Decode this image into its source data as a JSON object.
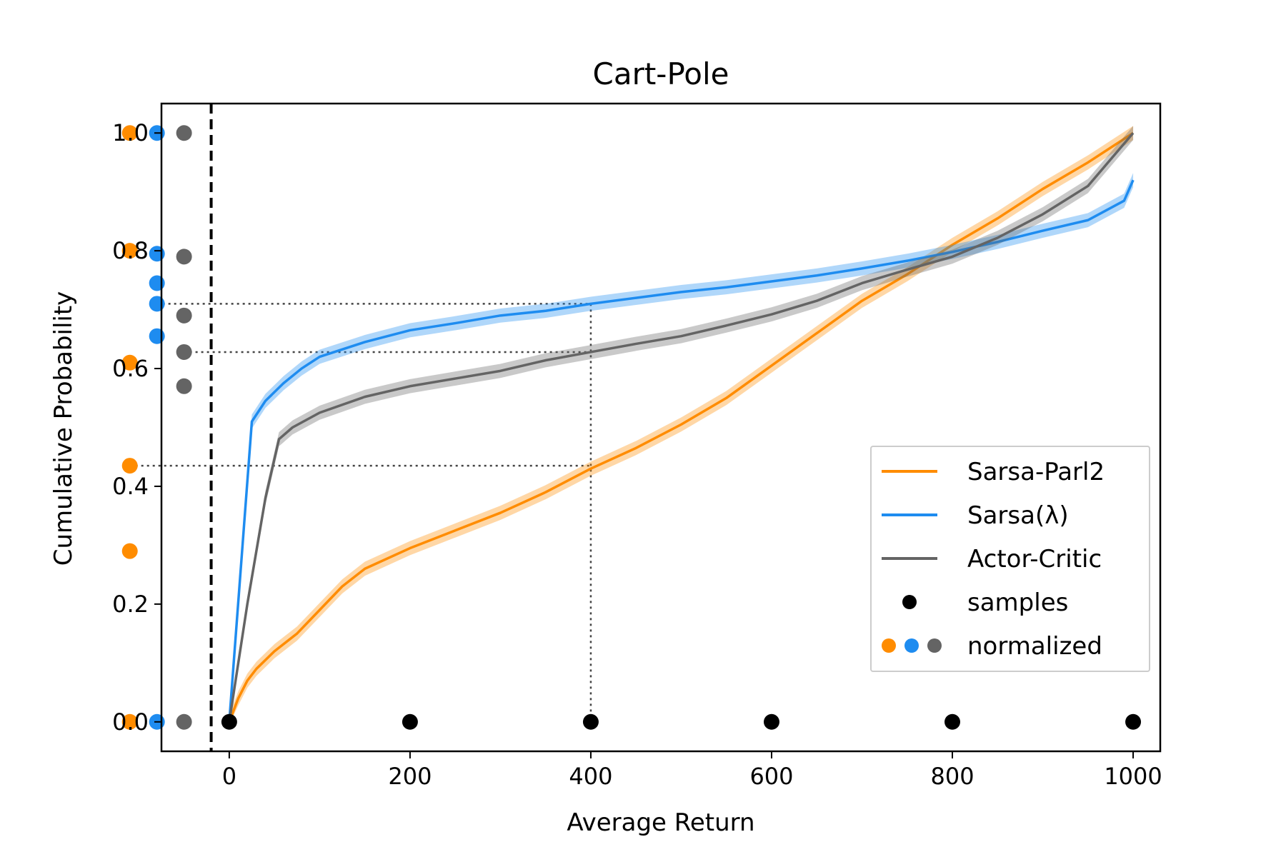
{
  "chart_data": {
    "type": "line",
    "title": "Cart-Pole",
    "xlabel": "Average Return",
    "ylabel": "Cumulative Probability",
    "xlim": [
      -75,
      1030
    ],
    "ylim": [
      -0.05,
      1.05
    ],
    "xticks": [
      0,
      200,
      400,
      600,
      800,
      1000
    ],
    "yticks": [
      0.0,
      0.2,
      0.4,
      0.6,
      0.8,
      1.0
    ],
    "grid": false,
    "legend_position": "lower-right",
    "series": [
      {
        "name": "Sarsa-Parl2",
        "color": "#ff8c00",
        "x": [
          0,
          10,
          20,
          30,
          50,
          75,
          100,
          125,
          150,
          200,
          250,
          300,
          350,
          400,
          450,
          500,
          550,
          600,
          650,
          700,
          750,
          800,
          850,
          900,
          950,
          1000
        ],
        "y": [
          0.0,
          0.04,
          0.07,
          0.09,
          0.12,
          0.15,
          0.19,
          0.23,
          0.26,
          0.295,
          0.325,
          0.355,
          0.39,
          0.43,
          0.465,
          0.505,
          0.55,
          0.605,
          0.66,
          0.715,
          0.76,
          0.81,
          0.855,
          0.905,
          0.95,
          1.0
        ]
      },
      {
        "name": "Sarsa(λ)",
        "color": "#1e8cf0",
        "x": [
          0,
          25,
          40,
          60,
          80,
          100,
          150,
          200,
          250,
          300,
          350,
          400,
          450,
          500,
          550,
          600,
          650,
          700,
          750,
          800,
          850,
          900,
          950,
          990,
          1000
        ],
        "y": [
          0.0,
          0.51,
          0.545,
          0.575,
          0.6,
          0.62,
          0.645,
          0.665,
          0.677,
          0.69,
          0.698,
          0.71,
          0.72,
          0.73,
          0.738,
          0.748,
          0.758,
          0.77,
          0.783,
          0.798,
          0.815,
          0.834,
          0.852,
          0.885,
          0.92
        ]
      },
      {
        "name": "Actor-Critic",
        "color": "#646464",
        "x": [
          0,
          20,
          40,
          55,
          70,
          100,
          150,
          200,
          250,
          300,
          350,
          400,
          450,
          500,
          550,
          600,
          650,
          700,
          750,
          800,
          850,
          900,
          950,
          1000
        ],
        "y": [
          0.0,
          0.2,
          0.38,
          0.48,
          0.5,
          0.525,
          0.552,
          0.57,
          0.583,
          0.596,
          0.614,
          0.628,
          0.642,
          0.655,
          0.673,
          0.692,
          0.715,
          0.745,
          0.768,
          0.79,
          0.822,
          0.862,
          0.91,
          1.0
        ]
      }
    ],
    "samples": {
      "name": "samples",
      "color": "#000000",
      "x": [
        0,
        200,
        400,
        600,
        800,
        1000
      ],
      "y": [
        0,
        0,
        0,
        0,
        0,
        0
      ]
    },
    "normalized": {
      "name": "normalized",
      "points": [
        {
          "color": "#ff8c00",
          "x": -110,
          "y": [
            1.0,
            0.8,
            0.61,
            0.435,
            0.29,
            0.0
          ]
        },
        {
          "color": "#1e8cf0",
          "x": -80,
          "y": [
            1.0,
            0.795,
            0.745,
            0.71,
            0.655,
            0.0
          ]
        },
        {
          "color": "#646464",
          "x": -50,
          "y": [
            1.0,
            0.79,
            0.69,
            0.628,
            0.57,
            0.0
          ]
        }
      ]
    },
    "threshold_x": -20,
    "reference_lines": [
      {
        "x": 400,
        "y": 0.71,
        "from_x": -80
      },
      {
        "x": 400,
        "y": 0.628,
        "from_x": -50
      },
      {
        "x": 400,
        "y": 0.435,
        "from_x": -110
      }
    ]
  }
}
